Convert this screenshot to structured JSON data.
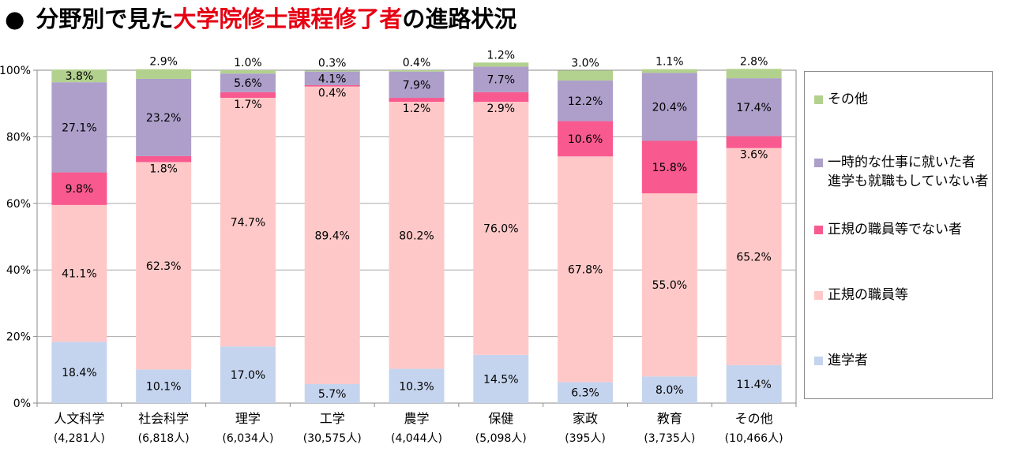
{
  "title": {
    "bullet": "●",
    "part1": "分野別で見た",
    "highlight": "大学院修士課程修了者",
    "part2": "の進路状況"
  },
  "colors": {
    "進学者": "#c5d4ee",
    "正規の職員等": "#ffc8c8",
    "正規の職員等でない者": "#f85a8f",
    "一時的な仕事": "#ad9fca",
    "その他": "#b3d18e",
    "highlight": "#e60012"
  },
  "legend": [
    {
      "key": "その他",
      "lines": [
        "その他"
      ]
    },
    {
      "key": "一時的な仕事",
      "lines": [
        "一時的な仕事に就いた者",
        "進学も就職もしていない者"
      ]
    },
    {
      "key": "正規の職員等でない者",
      "lines": [
        "正規の職員等でない者"
      ]
    },
    {
      "key": "正規の職員等",
      "lines": [
        "正規の職員等"
      ]
    },
    {
      "key": "進学者",
      "lines": [
        "進学者"
      ]
    }
  ],
  "chart_data": {
    "type": "bar",
    "stacked": true,
    "categories": [
      "人文科学",
      "社会科学",
      "理学",
      "工学",
      "農学",
      "保健",
      "家政",
      "教育",
      "その他"
    ],
    "category_counts": [
      "(4,281人)",
      "(6,818人)",
      "(6,034人)",
      "(30,575人)",
      "(4,044人)",
      "(5,098人)",
      "(395人)",
      "(3,735人)",
      "(10,466人)"
    ],
    "yticks": [
      "0%",
      "20%",
      "40%",
      "60%",
      "80%",
      "100%"
    ],
    "ylim": [
      0,
      100
    ],
    "grid": true,
    "legend_position": "right",
    "series": [
      {
        "key": "進学者",
        "name": "進学者",
        "values": [
          18.4,
          10.1,
          17.0,
          5.7,
          10.3,
          14.5,
          6.3,
          8.0,
          11.4
        ],
        "labels": [
          "18.4%",
          "10.1%",
          "17.0%",
          "5.7%",
          "10.3%",
          "14.5%",
          "6.3%",
          "8.0%",
          "11.4%"
        ]
      },
      {
        "key": "正規の職員等",
        "name": "正規の職員等",
        "values": [
          41.1,
          62.3,
          74.7,
          89.4,
          80.2,
          76.0,
          67.8,
          55.0,
          65.2
        ],
        "labels": [
          "41.1%",
          "62.3%",
          "74.7%",
          "89.4%",
          "80.2%",
          "76.0%",
          "67.8%",
          "55.0%",
          "65.2%"
        ]
      },
      {
        "key": "正規の職員等でない者",
        "name": "正規の職員等でない者",
        "values": [
          9.8,
          1.8,
          1.7,
          0.4,
          1.2,
          2.9,
          10.6,
          15.8,
          3.6
        ],
        "labels": [
          "9.8%",
          "1.8%",
          "1.7%",
          "0.4%",
          "1.2%",
          "2.9%",
          "10.6%",
          "15.8%",
          "3.6%"
        ]
      },
      {
        "key": "一時的な仕事",
        "name": "一時的な仕事に就いた者 進学も就職もしていない者",
        "values": [
          27.1,
          23.2,
          5.6,
          4.1,
          7.9,
          7.7,
          12.2,
          20.4,
          17.4
        ],
        "labels": [
          "27.1%",
          "23.2%",
          "5.6%",
          "4.1%",
          "7.9%",
          "7.7%",
          "12.2%",
          "20.4%",
          "17.4%"
        ]
      },
      {
        "key": "その他",
        "name": "その他",
        "values": [
          3.8,
          2.9,
          1.0,
          0.3,
          0.4,
          1.2,
          3.0,
          1.1,
          2.8
        ],
        "labels": [
          "3.8%",
          "2.9%",
          "1.0%",
          "0.3%",
          "0.4%",
          "1.2%",
          "3.0%",
          "1.1%",
          "2.8%"
        ]
      }
    ]
  }
}
